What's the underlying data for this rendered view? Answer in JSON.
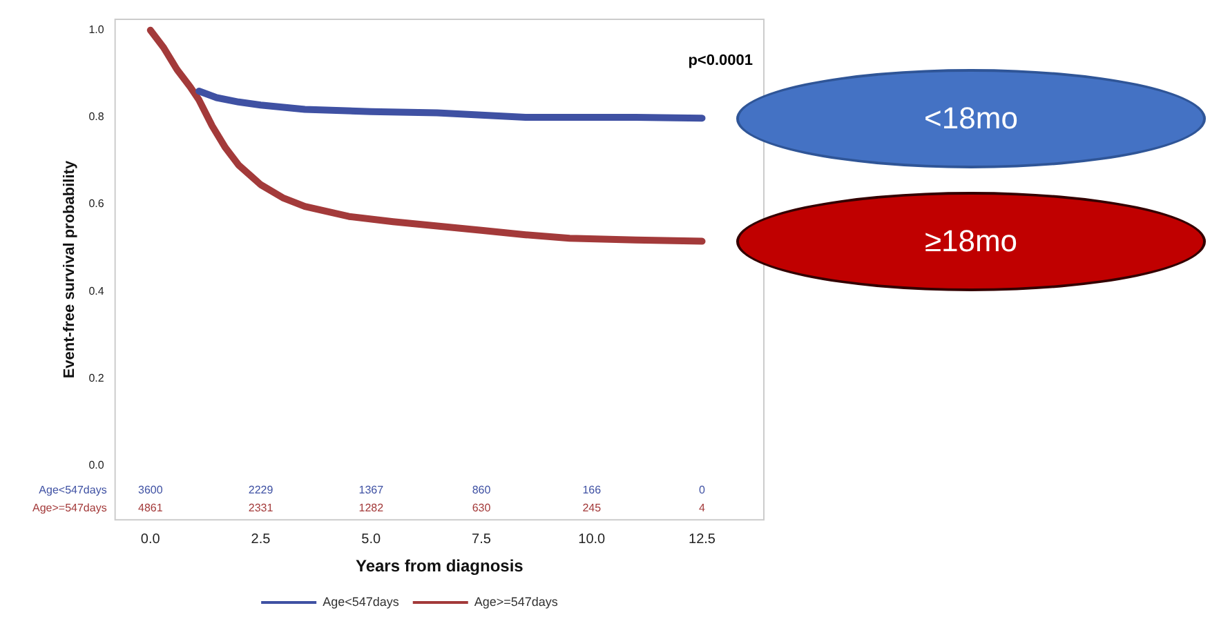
{
  "chart_data": {
    "type": "line",
    "xlabel": "Years from diagnosis",
    "ylabel": "Event-free survival probability",
    "xlim": [
      -0.8,
      13.9
    ],
    "xticks": [
      {
        "value": 0,
        "label": "0.0"
      },
      2.5,
      {
        "value": 5,
        "label": "5.0"
      },
      7.5,
      {
        "value": 10,
        "label": "10.0"
      },
      12.5
    ],
    "ylim": [
      -0.125,
      1.025
    ],
    "yticks": [
      {
        "value": 0,
        "label": "0.0"
      },
      0.2,
      0.4,
      0.6,
      0.8,
      {
        "value": 1,
        "label": "1.0"
      }
    ],
    "grid": false,
    "legend": "bottom",
    "marker": "none",
    "line_style": "solid",
    "series": [
      {
        "name": "Age<547days",
        "color": "#3f51a3",
        "x": [
          1.1,
          1.5,
          2.0,
          2.5,
          3.5,
          5.0,
          6.5,
          7.5,
          8.5,
          10.0,
          11.0,
          12.5
        ],
        "values": [
          0.86,
          0.845,
          0.835,
          0.828,
          0.818,
          0.813,
          0.81,
          0.805,
          0.8,
          0.8,
          0.8,
          0.798
        ]
      },
      {
        "name": "Age>=547days",
        "color": "#a33a3a",
        "x": [
          0,
          0.3,
          0.6,
          0.9,
          1.1,
          1.4,
          1.7,
          2.0,
          2.5,
          3.0,
          3.5,
          4.5,
          5.5,
          6.5,
          7.5,
          8.5,
          9.5,
          11.0,
          12.5
        ],
        "values": [
          1.0,
          0.96,
          0.91,
          0.87,
          0.84,
          0.78,
          0.73,
          0.69,
          0.645,
          0.615,
          0.595,
          0.572,
          0.56,
          0.55,
          0.54,
          0.53,
          0.522,
          0.518,
          0.515
        ]
      }
    ],
    "annotations": [
      "p<0.0001",
      "<18mo",
      "≥18mo",
      "Age<547days",
      "3600",
      "2229",
      "1367",
      "860",
      "166",
      "0",
      "Age>=547days",
      "4861",
      "2331",
      "1282",
      "630",
      "245",
      "4"
    ]
  }
}
